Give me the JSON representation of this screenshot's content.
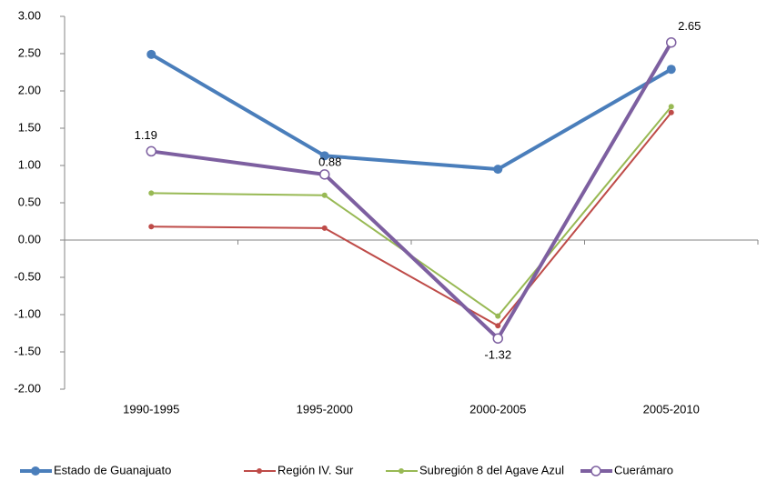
{
  "chart_data": {
    "type": "line",
    "categories": [
      "1990-1995",
      "1995-2000",
      "2000-2005",
      "2005-2010"
    ],
    "series": [
      {
        "name": "Estado de Guanajuato",
        "color": "#4a7ebb",
        "marker": "circle",
        "values": [
          2.49,
          1.13,
          0.95,
          2.29
        ]
      },
      {
        "name": "Región IV. Sur",
        "color": "#be4b48",
        "marker": "dot",
        "values": [
          0.18,
          0.16,
          -1.15,
          1.71
        ]
      },
      {
        "name": "Subregión 8 del Agave Azul",
        "color": "#98b954",
        "marker": "dot",
        "values": [
          0.63,
          0.6,
          -1.02,
          1.79
        ]
      },
      {
        "name": "Cuerámaro",
        "color": "#7d5fa0",
        "marker": "hollow-circle",
        "values": [
          1.19,
          0.88,
          -1.32,
          2.65
        ],
        "data_labels": true
      }
    ],
    "ylim": [
      -2,
      3
    ],
    "yticks": [
      {
        "value": -2,
        "label": "-2.00"
      },
      {
        "value": -1.5,
        "label": "-1.50"
      },
      {
        "value": -1,
        "label": "-1.00"
      },
      {
        "value": -0.5,
        "label": "-0.50"
      },
      {
        "value": 0,
        "label": "0.00"
      },
      {
        "value": 0.5,
        "label": "0.50"
      },
      {
        "value": 1,
        "label": "1.00"
      },
      {
        "value": 1.5,
        "label": "1.50"
      },
      {
        "value": 2,
        "label": "2.00"
      },
      {
        "value": 2.5,
        "label": "2.50"
      },
      {
        "value": 3,
        "label": "3.00"
      }
    ],
    "legend": "bottom"
  }
}
